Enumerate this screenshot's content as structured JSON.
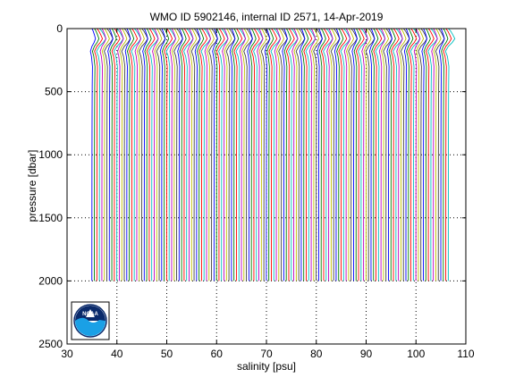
{
  "chart_data": {
    "type": "line",
    "title": "WMO ID 5902146, internal ID 2571, 14-Apr-2019",
    "xlabel": "salinity [psu]",
    "ylabel": "pressure [dbar]",
    "xlim": [
      30,
      110
    ],
    "ylim": [
      0,
      2500
    ],
    "y_reversed": true,
    "x_ticks": [
      30,
      40,
      50,
      60,
      70,
      80,
      90,
      100,
      110
    ],
    "y_ticks": [
      0,
      500,
      1000,
      1500,
      2000,
      2500
    ],
    "x_tick_labels": [
      "30",
      "40",
      "50",
      "60",
      "70",
      "80",
      "90",
      "100",
      "110"
    ],
    "y_tick_labels": [
      "0",
      "500",
      "1000",
      "1500",
      "2000",
      "2500"
    ],
    "grid": "dotted",
    "profile_offset_psu": 0.5,
    "profile_count": 144,
    "first_profile_deep_salinity": 35.0,
    "last_profile_deep_salinity": 106.5,
    "profile_max_pressure": 2000,
    "series_colors": [
      "#0000ff",
      "#008000",
      "#ff0000",
      "#00bfbf",
      "#bf00bf",
      "#bfbf00",
      "#404040"
    ]
  },
  "logo": {
    "text": "NOAA",
    "ring_color": "#0a2a6b",
    "wave_color": "#1aa0e6"
  }
}
